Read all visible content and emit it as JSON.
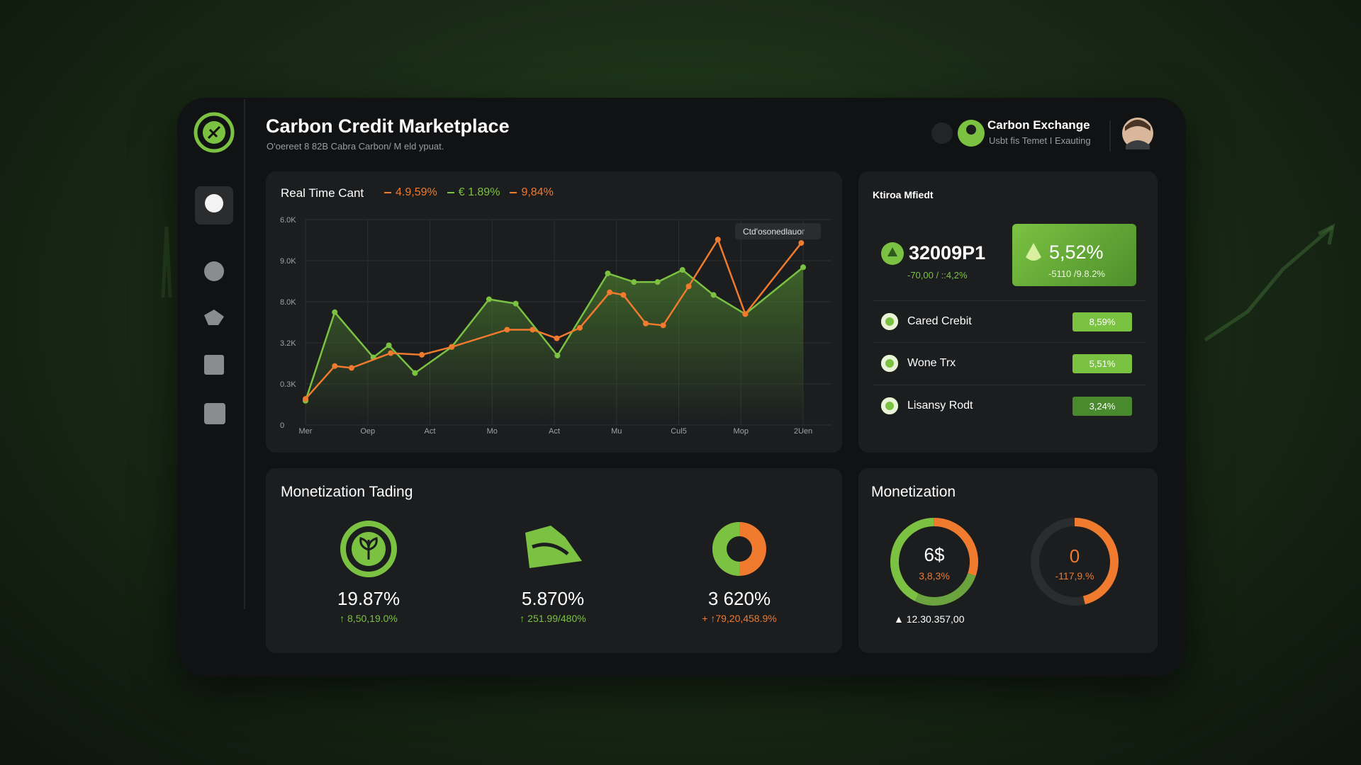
{
  "header": {
    "title": "Carbon Credit Marketplace",
    "subtitle": "O'oereet 8 82B Cabra Carbon/ M eld ypuat.",
    "account_name": "Carbon Exchange",
    "account_subtitle": "Usbt fis Temet I Exauting"
  },
  "chart_data": {
    "type": "line",
    "title": "Real Time Cant",
    "legend_items": [
      {
        "label": "4.9,59%",
        "color": "#f07a2e"
      },
      {
        "label": "€ 1.89%",
        "color": "#7cc242"
      },
      {
        "label": "9,84%",
        "color": "#f07a2e"
      }
    ],
    "tooltip": "Ctd'osonedlauor",
    "x_labels": [
      "Mer",
      "Oep",
      "Act",
      "Mo",
      "Act",
      "Mu",
      "Cul5",
      "Mop",
      "2Uen"
    ],
    "y_labels": [
      "6.0K",
      "9.0K",
      "8.0K",
      "3.2K",
      "0.3K",
      "0"
    ],
    "xlim": [
      0,
      8
    ],
    "ylim": [
      0,
      100
    ],
    "grid": true,
    "series": [
      {
        "color": "#7cc242",
        "x": [
          0,
          0.47,
          1.09,
          1.34,
          1.76,
          2.35,
          2.95,
          3.38,
          4.05,
          4.86,
          5.28,
          5.66,
          6.06,
          6.56,
          7.07,
          8
        ],
        "values": [
          11.8,
          54.9,
          32.9,
          38.8,
          25.3,
          38,
          61.2,
          59.1,
          33.8,
          73.8,
          69.6,
          69.6,
          75.5,
          63.3,
          54,
          76.8
        ]
      },
      {
        "color": "#f07a2e",
        "x": [
          0,
          0.47,
          0.74,
          1.37,
          1.87,
          2.35,
          3.24,
          3.65,
          4.04,
          4.41,
          4.89,
          5.11,
          5.47,
          5.75,
          6.16,
          6.63,
          7.07,
          7.97
        ],
        "values": [
          12.7,
          28.7,
          27.8,
          35,
          34.2,
          38,
          46.4,
          46.4,
          42.2,
          47.3,
          64.6,
          63.3,
          49.4,
          48.5,
          67.5,
          90.3,
          54,
          88.6
        ]
      }
    ]
  },
  "market": {
    "title": "Ktiroa Mfiedt",
    "price": "32009P1",
    "price_change": "-70,00 / ::4,2%",
    "highlight_value": "5,52%",
    "highlight_change": "-5110 /9.8.2%",
    "rows": [
      {
        "name": "Cared Crebit",
        "change": "8,59%"
      },
      {
        "name": "Wone Trx",
        "change": "5,51%"
      },
      {
        "name": "Lisansy Rodt",
        "change": "3,24%"
      }
    ]
  },
  "trading": {
    "title": "Monetization Tading",
    "items": [
      {
        "value": "19.87%",
        "change": "↑ 8,50,19.0%"
      },
      {
        "value": "5.870%",
        "change": "↑ 251.99/480%"
      },
      {
        "value": "3 620%",
        "change": "+ ↑79,20,458.9%"
      }
    ]
  },
  "monetization": {
    "title": "Monetization",
    "gauges": [
      {
        "value": "6$",
        "change": "3,8,3%"
      },
      {
        "value": "0",
        "change": "-117,9.%"
      }
    ],
    "footer": "▲ 12.30.357,00"
  }
}
